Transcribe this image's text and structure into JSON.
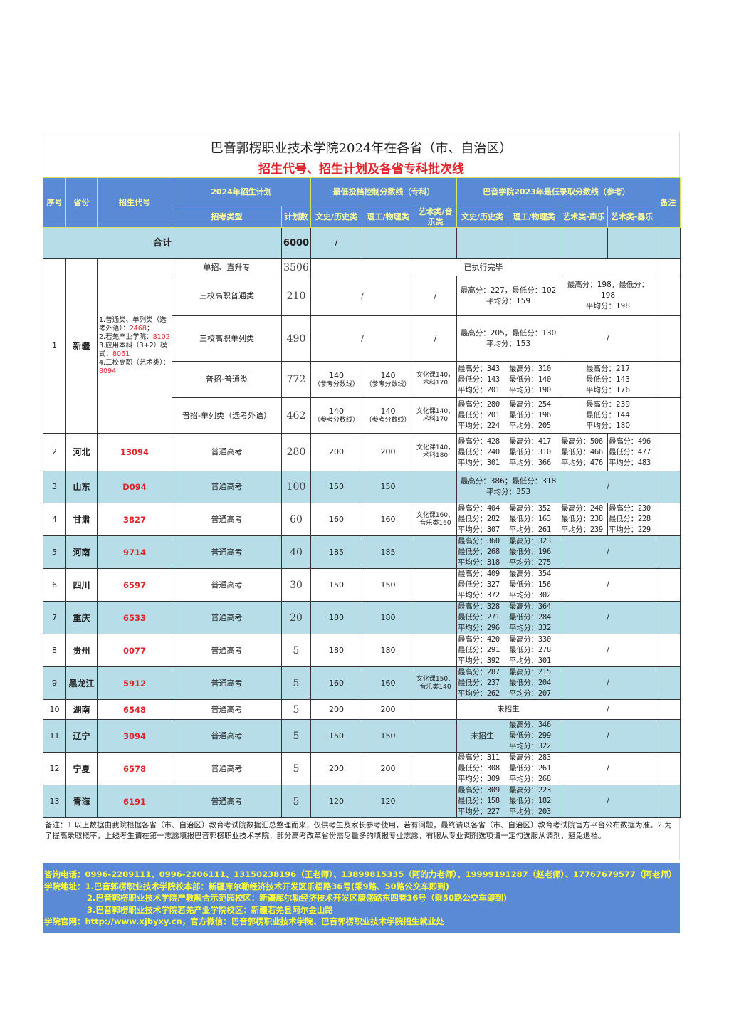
{
  "title": "巴音郭楞职业技术学院2024年在各省（市、自治区）",
  "subtitle": "招生代号、招生计划及各省专科批次线",
  "header": {
    "no": "序号",
    "province": "省份",
    "code": "招生代号",
    "plan_group": "2024年招生计划",
    "min_group": "最低投档控制分数线（专科）",
    "score_group": "巴音学院2023年最低录取分数线（参考）",
    "remark": "备注",
    "type": "招考类型",
    "plan": "计划数",
    "min_wen": "文史/历史类",
    "min_li": "理工/物理类",
    "min_art": "艺术类/音乐类",
    "s_wen": "文史/历史类",
    "s_li": "理工/物理类",
    "s_sheng": "艺术类-声乐",
    "s_qi": "艺术类-器乐"
  },
  "total": {
    "label": "合计",
    "plan": "6000",
    "min_wen": "/"
  },
  "xinjiang": {
    "no": "1",
    "province": "新疆",
    "codes": [
      {
        "text": "1.普通类、单列类（选考外语）：",
        "code": "2468",
        "tail": "；"
      },
      {
        "text": "2.若羌产业学院：",
        "code": "8102",
        "tail": ""
      },
      {
        "text": "3.应用本科（3+2）模式：",
        "code": "8061",
        "tail": ""
      },
      {
        "text": "4.三校高职（艺术类）：",
        "code": "8094",
        "tail": ""
      }
    ],
    "rows": [
      {
        "type": "单招、直升专",
        "plan": "3506",
        "status": "已执行完毕"
      },
      {
        "type": "三校高职普通类",
        "plan": "210",
        "min_wenli": "/",
        "min_art": "/",
        "s_wenli": "最高分：227，最低分：102\n平均分：159",
        "s_art": "最高分：198，最低分：198\n平均分：198"
      },
      {
        "type": "三校高职单列类",
        "plan": "490",
        "min_wenli": "/",
        "min_art": "/",
        "s_wenli": "最高分：205，最低分：130\n平均分：153",
        "s_art": "/"
      },
      {
        "type": "普招-普通类",
        "plan": "772",
        "min_wen": "140",
        "min_li": "140",
        "min_note": "（参考分数线）",
        "min_art": "文化课140，\n术科170",
        "s_wen": "最高分：343\n最低分：143\n平均分：201",
        "s_li": "最高分：310\n最低分：140\n平均分：190",
        "s_art": "最高分：217\n最低分：143\n平均分：176"
      },
      {
        "type": "普招-单列类（选考外语）",
        "plan": "462",
        "min_wen": "140",
        "min_li": "140",
        "min_note": "（参考分数线）",
        "min_art": "文化课140，\n术科170",
        "s_wen": "最高分：280\n最低分：201\n平均分：224",
        "s_li": "最高分：254\n最低分：196\n平均分：205",
        "s_art": "最高分：239\n最低分：144\n平均分：180"
      }
    ]
  },
  "provinces": [
    {
      "no": "2",
      "province": "河北",
      "code": "13094",
      "type": "普通高考",
      "plan": "280",
      "min_wen": "200",
      "min_li": "200",
      "min_art": "文化课140，\n术科180",
      "s_wen": "最高分：428\n最低分：240\n平均分：301",
      "s_li": "最高分：417\n最低分：310\n平均分：366",
      "s_sheng": "最高分：506\n最低分：466\n平均分：476",
      "s_qi": "最高分：496\n最低分：477\n平均分：483"
    },
    {
      "no": "3",
      "province": "山东",
      "code": "D094",
      "type": "普通高考",
      "plan": "100",
      "min_wen": "150",
      "min_li": "150",
      "min_art": "",
      "s_wenli": "最高分：386；最低分：318\n平均分：353",
      "s_art": "/"
    },
    {
      "no": "4",
      "province": "甘肃",
      "code": "3827",
      "type": "普通高考",
      "plan": "60",
      "min_wen": "160",
      "min_li": "160",
      "min_art": "文化课160、\n音乐类160",
      "s_wen": "最高分：404\n最低分：282\n平均分：307",
      "s_li": "最高分：352\n最低分：163\n平均分：261",
      "s_sheng": "最高分：240\n最低分：238\n平均分：239",
      "s_qi": "最高分：230\n最低分：228\n平均分：229"
    },
    {
      "no": "5",
      "province": "河南",
      "code": "9714",
      "type": "普通高考",
      "plan": "40",
      "min_wen": "185",
      "min_li": "185",
      "min_art": "",
      "s_wen": "最高分：360\n最低分：268\n平均分：318",
      "s_li": "最高分：323\n最低分：196\n平均分：275",
      "s_art": "/"
    },
    {
      "no": "6",
      "province": "四川",
      "code": "6597",
      "type": "普通高考",
      "plan": "30",
      "min_wen": "150",
      "min_li": "150",
      "min_art": "",
      "s_wen": "最高分：409\n最低分：327\n平均分：372",
      "s_li": "最高分：354\n最低分：156\n平均分：302",
      "s_art": "/"
    },
    {
      "no": "7",
      "province": "重庆",
      "code": "6533",
      "type": "普通高考",
      "plan": "20",
      "min_wen": "180",
      "min_li": "180",
      "min_art": "",
      "s_wen": "最高分：328\n最低分：271\n平均分：296",
      "s_li": "最高分：364\n最低分：284\n平均分：332",
      "s_art": "/"
    },
    {
      "no": "8",
      "province": "贵州",
      "code": "0077",
      "type": "普通高考",
      "plan": "5",
      "min_wen": "180",
      "min_li": "180",
      "min_art": "",
      "s_wen": "最高分：420\n最低分：291\n平均分：392",
      "s_li": "最高分：330\n最低分：278\n平均分：301",
      "s_art": "/"
    },
    {
      "no": "9",
      "province": "黑龙江",
      "code": "5912",
      "type": "普通高考",
      "plan": "5",
      "min_wen": "160",
      "min_li": "160",
      "min_art": "文化课150、\n音乐类140",
      "s_wen": "最高分：287\n最低分：237\n平均分：262",
      "s_li": "最高分：215\n最低分：204\n平均分：207",
      "s_art": "/"
    },
    {
      "no": "10",
      "province": "湖南",
      "code": "6548",
      "type": "普通高考",
      "plan": "5",
      "min_wen": "200",
      "min_li": "200",
      "min_art": "",
      "s_wenli": "未招生",
      "s_art": "/"
    },
    {
      "no": "11",
      "province": "辽宁",
      "code": "3094",
      "type": "普通高考",
      "plan": "5",
      "min_wen": "150",
      "min_li": "150",
      "min_art": "",
      "s_wen_plain": "未招生",
      "s_li": "最高分：346\n最低分：299\n平均分：322",
      "s_art": "/"
    },
    {
      "no": "12",
      "province": "宁夏",
      "code": "6578",
      "type": "普通高考",
      "plan": "5",
      "min_wen": "200",
      "min_li": "200",
      "min_art": "",
      "s_wen": "最高分：311\n最低分：308\n平均分：309",
      "s_li": "最高分：283\n最低分：261\n平均分：268",
      "s_art": "/"
    },
    {
      "no": "13",
      "province": "青海",
      "code": "6191",
      "type": "普通高考",
      "plan": "5",
      "min_wen": "120",
      "min_li": "120",
      "min_art": "",
      "s_wen": "最高分：309\n最低分：158\n平均分：227",
      "s_li": "最高分：223\n最低分：182\n平均分：203",
      "s_art": "/"
    }
  ],
  "notes": "备注：1.以上数据由我院根据各省（市、自治区）教育考试院数据汇总整理而来，仅供考生及家长参考使用，若有问题，最终请以各省（市、自治区）教育考试院官方平台公布数据为准。2.为了提高录取概率，上线考生请在第一志愿填报巴音郭楞职业技术学院，部分高考改革省份需尽量多的填报专业志愿，有服从专业调剂选项请一定勾选服从调剂，避免退档。",
  "footer": {
    "phone": "咨询电话：0996-2209111、0996-2206111、13150238196（王老师）、13899815335（阿的力老师）、19999191287（赵老师）、17767679577（阿老师）",
    "address1": "学院地址：1.巴音郭楞职业技术学院校本部：新疆库尔勒经济技术开发区乐梧路36号(乘9路、50路公交车即到)",
    "address2": "2.巴音郭楞职业技术学院产教融合示范园校区：新疆库尔勒经济技术开发区康盛路东四巷36号（乘50路公交车即到)",
    "address3": "3.巴音郭楞职业技术学院若羌产业学院校区：新疆若羌县阿尔金山路",
    "web": "学院官网：http://www.xjbyxy.cn，官方微信：巴音郭楞职业技术学院、巴音郭楞职业技术学院招生就业处"
  },
  "colors": {
    "header_bg": "#5a8ad6",
    "header_text": "#ffffa0",
    "stripe": "#b7dde8",
    "code_red": "#e0242b",
    "footer_text": "#ffff3a"
  }
}
